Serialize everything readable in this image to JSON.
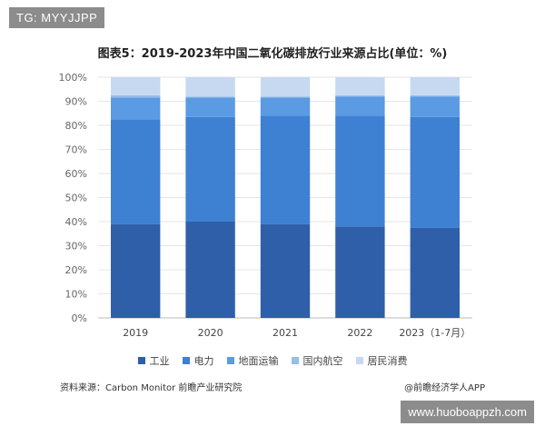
{
  "header": {
    "tag": "TG: MYYJJPP"
  },
  "chart_data": {
    "type": "bar",
    "stacked": true,
    "title": "图表5：2019-2023年中国二氧化碳排放行业来源占比(单位：%)",
    "categories": [
      "2019",
      "2020",
      "2021",
      "2022",
      "2023（1-7月）"
    ],
    "yticks": [
      "0%",
      "10%",
      "20%",
      "30%",
      "40%",
      "50%",
      "60%",
      "70%",
      "80%",
      "90%",
      "100%"
    ],
    "ylim": [
      0,
      100
    ],
    "grid": true,
    "legend_position": "bottom",
    "series": [
      {
        "name": "工业",
        "color": "#2f5fa8",
        "values": [
          39,
          40,
          39,
          38,
          37.5
        ]
      },
      {
        "name": "电力",
        "color": "#3e80d2",
        "values": [
          43.5,
          43.5,
          45,
          46,
          46
        ]
      },
      {
        "name": "地面运输",
        "color": "#5a9be3",
        "values": [
          9,
          8,
          7.5,
          8,
          8.5
        ]
      },
      {
        "name": "国内航空",
        "color": "#97bde9",
        "values": [
          1,
          0.5,
          0.5,
          0.5,
          0.5
        ]
      },
      {
        "name": "居民消费",
        "color": "#c6d9f1",
        "values": [
          7.5,
          8,
          8,
          7.5,
          7.5
        ]
      }
    ]
  },
  "footer": {
    "source": "资料来源：Carbon Monitor 前瞻产业研究院",
    "brand": "@前瞻经济学人APP"
  },
  "bottom_tag": "www.huoboappzh.com"
}
